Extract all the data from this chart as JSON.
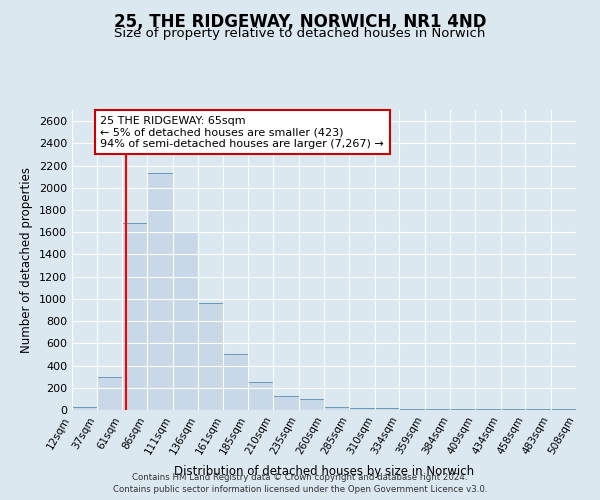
{
  "title": "25, THE RIDGEWAY, NORWICH, NR1 4ND",
  "subtitle": "Size of property relative to detached houses in Norwich",
  "xlabel": "Distribution of detached houses by size in Norwich",
  "ylabel": "Number of detached properties",
  "bar_color": "#c8d8e8",
  "bar_edge_color": "#6699bb",
  "bin_edges": [
    12,
    37,
    61,
    86,
    111,
    136,
    161,
    185,
    210,
    235,
    260,
    285,
    310,
    334,
    359,
    384,
    409,
    434,
    458,
    483,
    508
  ],
  "bin_labels": [
    "12sqm",
    "37sqm",
    "61sqm",
    "86sqm",
    "111sqm",
    "136sqm",
    "161sqm",
    "185sqm",
    "210sqm",
    "235sqm",
    "260sqm",
    "285sqm",
    "310sqm",
    "334sqm",
    "359sqm",
    "384sqm",
    "409sqm",
    "434sqm",
    "458sqm",
    "483sqm",
    "508sqm"
  ],
  "bar_heights": [
    30,
    300,
    1680,
    2130,
    1600,
    960,
    500,
    250,
    130,
    100,
    30,
    20,
    15,
    10,
    5,
    5,
    5,
    5,
    5,
    5
  ],
  "red_line_x": 65,
  "ylim": [
    0,
    2700
  ],
  "yticks": [
    0,
    200,
    400,
    600,
    800,
    1000,
    1200,
    1400,
    1600,
    1800,
    2000,
    2200,
    2400,
    2600
  ],
  "annotation_text": "25 THE RIDGEWAY: 65sqm\n← 5% of detached houses are smaller (423)\n94% of semi-detached houses are larger (7,267) →",
  "annotation_box_color": "#ffffff",
  "annotation_box_edge_color": "#cc0000",
  "footer_line1": "Contains HM Land Registry data © Crown copyright and database right 2024.",
  "footer_line2": "Contains public sector information licensed under the Open Government Licence v3.0.",
  "background_color": "#dce8f0",
  "grid_color": "#ffffff",
  "title_fontsize": 12,
  "subtitle_fontsize": 9.5
}
